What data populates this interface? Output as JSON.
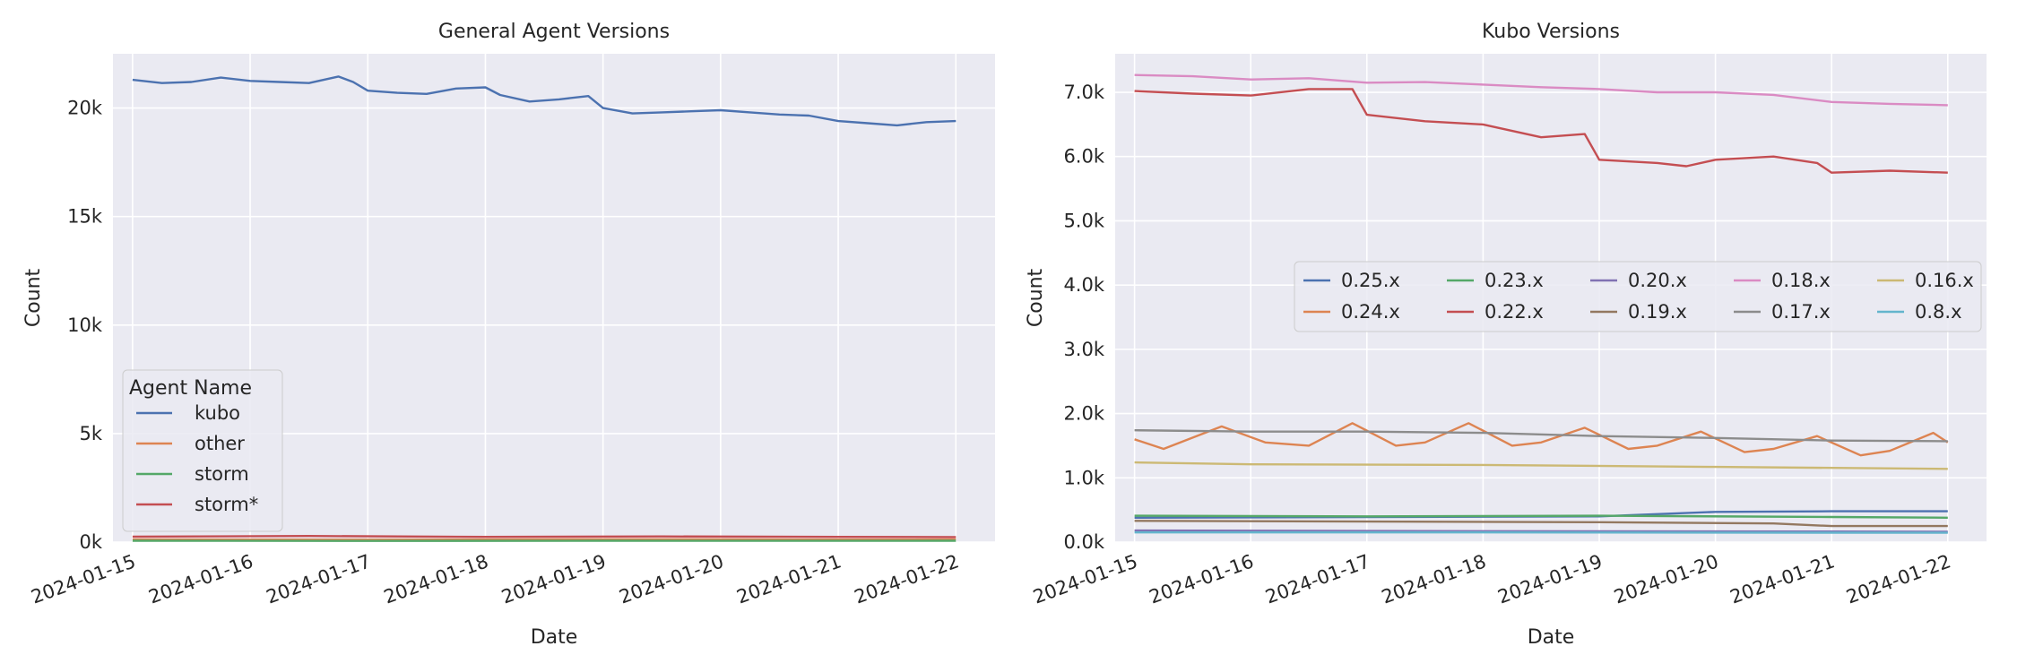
{
  "chart_data": [
    {
      "type": "line",
      "title": "General Agent Versions",
      "xlabel": "Date",
      "ylabel": "Count",
      "x_ticks": [
        "2024-01-15",
        "2024-01-16",
        "2024-01-17",
        "2024-01-18",
        "2024-01-19",
        "2024-01-20",
        "2024-01-21",
        "2024-01-22"
      ],
      "y_ticks": [
        {
          "value": 0,
          "label": "0k"
        },
        {
          "value": 5000,
          "label": "5k"
        },
        {
          "value": 10000,
          "label": "10k"
        },
        {
          "value": 15000,
          "label": "15k"
        },
        {
          "value": 20000,
          "label": "20k"
        }
      ],
      "xlim": [
        "2024-01-14T20:00",
        "2024-01-22T08:00"
      ],
      "ylim": [
        0,
        22500
      ],
      "grid": true,
      "legend": {
        "title": "Agent Name",
        "placement": "lower-left"
      },
      "series": [
        {
          "name": "kubo",
          "color": "#4c72b0",
          "points": [
            [
              "2024-01-15T00:00",
              21300
            ],
            [
              "2024-01-15T06:00",
              21150
            ],
            [
              "2024-01-15T12:00",
              21200
            ],
            [
              "2024-01-15T18:00",
              21400
            ],
            [
              "2024-01-16T00:00",
              21250
            ],
            [
              "2024-01-16T06:00",
              21200
            ],
            [
              "2024-01-16T12:00",
              21150
            ],
            [
              "2024-01-16T18:00",
              21450
            ],
            [
              "2024-01-16T21:00",
              21200
            ],
            [
              "2024-01-17T00:00",
              20800
            ],
            [
              "2024-01-17T06:00",
              20700
            ],
            [
              "2024-01-17T12:00",
              20650
            ],
            [
              "2024-01-17T18:00",
              20900
            ],
            [
              "2024-01-18T00:00",
              20950
            ],
            [
              "2024-01-18T03:00",
              20600
            ],
            [
              "2024-01-18T09:00",
              20300
            ],
            [
              "2024-01-18T15:00",
              20400
            ],
            [
              "2024-01-18T21:00",
              20550
            ],
            [
              "2024-01-19T00:00",
              20000
            ],
            [
              "2024-01-19T06:00",
              19750
            ],
            [
              "2024-01-19T12:00",
              19800
            ],
            [
              "2024-01-19T18:00",
              19850
            ],
            [
              "2024-01-20T00:00",
              19900
            ],
            [
              "2024-01-20T06:00",
              19800
            ],
            [
              "2024-01-20T12:00",
              19700
            ],
            [
              "2024-01-20T18:00",
              19650
            ],
            [
              "2024-01-21T00:00",
              19400
            ],
            [
              "2024-01-21T06:00",
              19300
            ],
            [
              "2024-01-21T12:00",
              19200
            ],
            [
              "2024-01-21T18:00",
              19350
            ],
            [
              "2024-01-22T00:00",
              19400
            ]
          ]
        },
        {
          "name": "other",
          "color": "#dd8452",
          "points": [
            [
              "2024-01-15T00:00",
              120
            ],
            [
              "2024-01-17T00:00",
              110
            ],
            [
              "2024-01-19T00:00",
              130
            ],
            [
              "2024-01-21T00:00",
              115
            ],
            [
              "2024-01-22T00:00",
              120
            ]
          ]
        },
        {
          "name": "storm",
          "color": "#55a868",
          "points": [
            [
              "2024-01-15T00:00",
              60
            ],
            [
              "2024-01-17T00:00",
              55
            ],
            [
              "2024-01-19T00:00",
              60
            ],
            [
              "2024-01-21T00:00",
              58
            ],
            [
              "2024-01-22T00:00",
              60
            ]
          ]
        },
        {
          "name": "storm*",
          "color": "#c44e52",
          "points": [
            [
              "2024-01-15T00:00",
              250
            ],
            [
              "2024-01-16T12:00",
              280
            ],
            [
              "2024-01-18T00:00",
              240
            ],
            [
              "2024-01-19T12:00",
              260
            ],
            [
              "2024-01-21T00:00",
              240
            ],
            [
              "2024-01-22T00:00",
              230
            ]
          ]
        }
      ]
    },
    {
      "type": "line",
      "title": "Kubo Versions",
      "xlabel": "Date",
      "ylabel": "Count",
      "x_ticks": [
        "2024-01-15",
        "2024-01-16",
        "2024-01-17",
        "2024-01-18",
        "2024-01-19",
        "2024-01-20",
        "2024-01-21",
        "2024-01-22"
      ],
      "y_ticks": [
        {
          "value": 0,
          "label": "0.0k"
        },
        {
          "value": 1000,
          "label": "1.0k"
        },
        {
          "value": 2000,
          "label": "2.0k"
        },
        {
          "value": 3000,
          "label": "3.0k"
        },
        {
          "value": 4000,
          "label": "4.0k"
        },
        {
          "value": 5000,
          "label": "5.0k"
        },
        {
          "value": 6000,
          "label": "6.0k"
        },
        {
          "value": 7000,
          "label": "7.0k"
        }
      ],
      "xlim": [
        "2024-01-14T20:00",
        "2024-01-22T08:00"
      ],
      "ylim": [
        0,
        7600
      ],
      "grid": true,
      "legend": {
        "placement": "center-right",
        "columns": 5
      },
      "series": [
        {
          "name": "0.25.x",
          "color": "#4c72b0",
          "points": [
            [
              "2024-01-15T00:00",
              380
            ],
            [
              "2024-01-17T00:00",
              390
            ],
            [
              "2024-01-19T00:00",
              400
            ],
            [
              "2024-01-20T00:00",
              470
            ],
            [
              "2024-01-21T00:00",
              480
            ],
            [
              "2024-01-22T00:00",
              480
            ]
          ]
        },
        {
          "name": "0.24.x",
          "color": "#dd8452",
          "points": [
            [
              "2024-01-15T00:00",
              1600
            ],
            [
              "2024-01-15T06:00",
              1450
            ],
            [
              "2024-01-15T18:00",
              1800
            ],
            [
              "2024-01-16T03:00",
              1550
            ],
            [
              "2024-01-16T12:00",
              1500
            ],
            [
              "2024-01-16T21:00",
              1850
            ],
            [
              "2024-01-17T06:00",
              1500
            ],
            [
              "2024-01-17T12:00",
              1550
            ],
            [
              "2024-01-17T21:00",
              1850
            ],
            [
              "2024-01-18T06:00",
              1500
            ],
            [
              "2024-01-18T12:00",
              1550
            ],
            [
              "2024-01-18T21:00",
              1780
            ],
            [
              "2024-01-19T06:00",
              1450
            ],
            [
              "2024-01-19T12:00",
              1500
            ],
            [
              "2024-01-19T21:00",
              1720
            ],
            [
              "2024-01-20T06:00",
              1400
            ],
            [
              "2024-01-20T12:00",
              1450
            ],
            [
              "2024-01-20T21:00",
              1650
            ],
            [
              "2024-01-21T06:00",
              1350
            ],
            [
              "2024-01-21T12:00",
              1420
            ],
            [
              "2024-01-21T21:00",
              1700
            ],
            [
              "2024-01-22T00:00",
              1550
            ]
          ]
        },
        {
          "name": "0.23.x",
          "color": "#55a868",
          "points": [
            [
              "2024-01-15T00:00",
              410
            ],
            [
              "2024-01-17T00:00",
              400
            ],
            [
              "2024-01-19T00:00",
              410
            ],
            [
              "2024-01-21T00:00",
              390
            ],
            [
              "2024-01-22T00:00",
              380
            ]
          ]
        },
        {
          "name": "0.22.x",
          "color": "#c44e52",
          "points": [
            [
              "2024-01-15T00:00",
              7020
            ],
            [
              "2024-01-15T12:00",
              6980
            ],
            [
              "2024-01-16T00:00",
              6950
            ],
            [
              "2024-01-16T12:00",
              7050
            ],
            [
              "2024-01-16T21:00",
              7050
            ],
            [
              "2024-01-17T00:00",
              6650
            ],
            [
              "2024-01-17T12:00",
              6550
            ],
            [
              "2024-01-18T00:00",
              6500
            ],
            [
              "2024-01-18T12:00",
              6300
            ],
            [
              "2024-01-18T21:00",
              6350
            ],
            [
              "2024-01-19T00:00",
              5950
            ],
            [
              "2024-01-19T12:00",
              5900
            ],
            [
              "2024-01-19T18:00",
              5850
            ],
            [
              "2024-01-20T00:00",
              5950
            ],
            [
              "2024-01-20T12:00",
              6000
            ],
            [
              "2024-01-20T21:00",
              5900
            ],
            [
              "2024-01-21T00:00",
              5750
            ],
            [
              "2024-01-21T12:00",
              5780
            ],
            [
              "2024-01-22T00:00",
              5750
            ]
          ]
        },
        {
          "name": "0.20.x",
          "color": "#8172b3",
          "points": [
            [
              "2024-01-15T00:00",
              180
            ],
            [
              "2024-01-18T00:00",
              170
            ],
            [
              "2024-01-21T00:00",
              165
            ],
            [
              "2024-01-22T00:00",
              160
            ]
          ]
        },
        {
          "name": "0.19.x",
          "color": "#937860",
          "points": [
            [
              "2024-01-15T00:00",
              330
            ],
            [
              "2024-01-17T00:00",
              320
            ],
            [
              "2024-01-19T00:00",
              310
            ],
            [
              "2024-01-20T12:00",
              290
            ],
            [
              "2024-01-21T00:00",
              250
            ],
            [
              "2024-01-22T00:00",
              250
            ]
          ]
        },
        {
          "name": "0.18.x",
          "color": "#da8bc3",
          "points": [
            [
              "2024-01-15T00:00",
              7270
            ],
            [
              "2024-01-15T12:00",
              7250
            ],
            [
              "2024-01-16T00:00",
              7200
            ],
            [
              "2024-01-16T12:00",
              7220
            ],
            [
              "2024-01-17T00:00",
              7150
            ],
            [
              "2024-01-17T12:00",
              7160
            ],
            [
              "2024-01-18T00:00",
              7120
            ],
            [
              "2024-01-18T12:00",
              7080
            ],
            [
              "2024-01-19T00:00",
              7050
            ],
            [
              "2024-01-19T12:00",
              7000
            ],
            [
              "2024-01-20T00:00",
              7000
            ],
            [
              "2024-01-20T12:00",
              6960
            ],
            [
              "2024-01-21T00:00",
              6850
            ],
            [
              "2024-01-21T12:00",
              6820
            ],
            [
              "2024-01-22T00:00",
              6800
            ]
          ]
        },
        {
          "name": "0.17.x",
          "color": "#8c8c8c",
          "points": [
            [
              "2024-01-15T00:00",
              1740
            ],
            [
              "2024-01-16T00:00",
              1720
            ],
            [
              "2024-01-17T00:00",
              1720
            ],
            [
              "2024-01-18T00:00",
              1700
            ],
            [
              "2024-01-19T00:00",
              1650
            ],
            [
              "2024-01-20T00:00",
              1620
            ],
            [
              "2024-01-21T00:00",
              1580
            ],
            [
              "2024-01-22T00:00",
              1570
            ]
          ]
        },
        {
          "name": "0.16.x",
          "color": "#ccb974",
          "points": [
            [
              "2024-01-15T00:00",
              1240
            ],
            [
              "2024-01-16T00:00",
              1210
            ],
            [
              "2024-01-18T00:00",
              1200
            ],
            [
              "2024-01-20T00:00",
              1170
            ],
            [
              "2024-01-22T00:00",
              1140
            ]
          ]
        },
        {
          "name": "0.8.x",
          "color": "#64b5cd",
          "points": [
            [
              "2024-01-15T00:00",
              150
            ],
            [
              "2024-01-18T00:00",
              150
            ],
            [
              "2024-01-22T00:00",
              145
            ]
          ]
        }
      ]
    }
  ]
}
